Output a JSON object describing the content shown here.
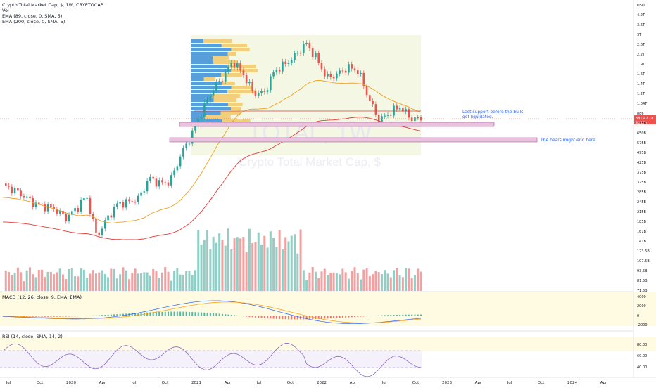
{
  "legend": {
    "main": "Crypto Total Market Cap, $, 1W, CRYPTOCAP",
    "vol": "Vol",
    "ema1": "EMA (89, close, 0, SMA, 5)",
    "ema2": "EMA (200, close, 0, SMA, 5)",
    "macd": "MACD (12, 26, close, 9, EMA, EMA)",
    "rsi": "RSI (14, close, SMA, 14, 2)"
  },
  "watermark": {
    "title": "TOTAL, 1W",
    "subtitle": "Crypto Total Market Cap, $"
  },
  "annotations": {
    "support_line1": "Last support before the bulls",
    "support_line2": "get liquidated.",
    "bears": "The bears might end here."
  },
  "price_badge": {
    "value": "881.42.18",
    "sub": "3d 16h"
  },
  "colors": {
    "up": "#26a69a",
    "down": "#ef5350",
    "vol_up": "#8fcfc6",
    "vol_down": "#f2a0a0",
    "ema89": "#f0a020",
    "ema200": "#e53935",
    "zone_fill": "#e9c3dd",
    "zone_stroke": "#a95e96",
    "vp_up": "#3b8fd8",
    "vp_down": "#f2c15a",
    "rsi_line": "#7e57c2",
    "macd_line": "#2962ff",
    "signal_line": "#ff9800",
    "highlight": "#fffbe3"
  },
  "chart_data": {
    "type": "line",
    "title": "Crypto Total Market Cap, $, 1W, CRYPTOCAP",
    "price_axis": [
      "USD",
      "4.2T",
      "3.6T",
      "3T",
      "2.6T",
      "2.2T",
      "1.9T",
      "1.6T",
      "1.4T",
      "1.2T",
      "1.04T",
      "886",
      "755B",
      "650B",
      "575B",
      "495B",
      "425B",
      "375B",
      "325B",
      "285B",
      "245B",
      "215B",
      "185B",
      "161B",
      "141B",
      "123.5B",
      "107.5B",
      "93.5B",
      "81.5B",
      "71.5B"
    ],
    "macd_axis": [
      "4000",
      "2000",
      "0",
      "-2000"
    ],
    "rsi_axis": [
      "80.00",
      "60.00",
      "40.00"
    ],
    "time_axis": [
      "Jul",
      "Oct",
      "2020",
      "Apr",
      "Jul",
      "Oct",
      "2021",
      "Apr",
      "Jul",
      "Oct",
      "2022",
      "Apr",
      "Jul",
      "Oct",
      "2023",
      "Apr",
      "Jul",
      "Oct",
      "2024",
      "Apr"
    ],
    "series": [
      {
        "name": "TOTAL",
        "x": [
          "2019-06",
          "2019-07",
          "2019-08",
          "2019-09",
          "2019-10",
          "2019-11",
          "2019-12",
          "2020-01",
          "2020-02",
          "2020-03",
          "2020-04",
          "2020-05",
          "2020-06",
          "2020-07",
          "2020-08",
          "2020-09",
          "2020-10",
          "2020-11",
          "2020-12",
          "2021-01",
          "2021-02",
          "2021-03",
          "2021-04",
          "2021-05",
          "2021-06",
          "2021-07",
          "2021-08",
          "2021-09",
          "2021-10",
          "2021-11",
          "2021-12",
          "2022-01",
          "2022-02",
          "2022-03",
          "2022-04",
          "2022-05",
          "2022-06",
          "2022-07",
          "2022-08",
          "2022-09",
          "2022-10"
        ],
        "values": [
          330,
          310,
          280,
          250,
          240,
          230,
          200,
          230,
          280,
          150,
          200,
          250,
          255,
          270,
          370,
          340,
          350,
          520,
          700,
          1000,
          1400,
          1700,
          2200,
          1800,
          1350,
          1350,
          1900,
          2100,
          2400,
          2900,
          2300,
          1700,
          1800,
          2000,
          1900,
          1250,
          880,
          1000,
          1100,
          920,
          900
        ]
      }
    ]
  }
}
